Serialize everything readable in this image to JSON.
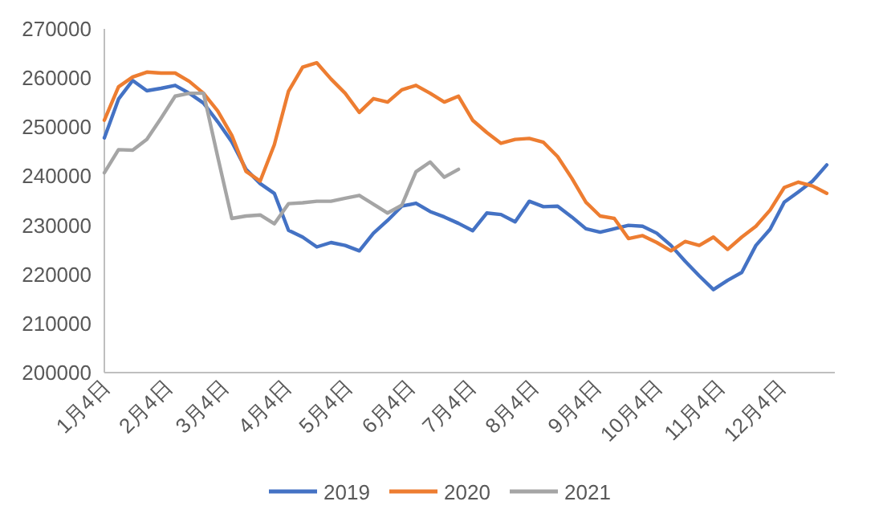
{
  "chart_data": {
    "type": "line",
    "x": [
      "--01-04",
      "--01-11",
      "--01-18",
      "--01-25",
      "--02-01",
      "--02-08",
      "--02-15",
      "--02-22",
      "--03-01",
      "--03-08",
      "--03-15",
      "--03-22",
      "--03-29",
      "--04-05",
      "--04-12",
      "--04-19",
      "--04-26",
      "--05-03",
      "--05-10",
      "--05-17",
      "--05-24",
      "--05-31",
      "--06-07",
      "--06-14",
      "--06-21",
      "--06-28",
      "--07-05",
      "--07-12",
      "--07-19",
      "--07-26",
      "--08-02",
      "--08-09",
      "--08-16",
      "--08-23",
      "--08-30",
      "--09-06",
      "--09-13",
      "--09-20",
      "--09-27",
      "--10-04",
      "--10-11",
      "--10-18",
      "--10-25",
      "--11-01",
      "--11-08",
      "--11-15",
      "--11-22",
      "--11-29",
      "--12-06",
      "--12-13",
      "--12-20",
      "--12-27"
    ],
    "series": [
      {
        "name": "2019",
        "color": "#4472c4",
        "values": [
          247800,
          255700,
          259500,
          257400,
          257900,
          258500,
          256900,
          254900,
          251100,
          247000,
          241400,
          238500,
          236500,
          229000,
          227600,
          225600,
          226500,
          225900,
          224800,
          228400,
          231000,
          233900,
          234500,
          232800,
          231700,
          230400,
          228900,
          232500,
          232200,
          230700,
          234900,
          233800,
          233900,
          231700,
          229300,
          228600,
          229300,
          230000,
          229800,
          228400,
          225900,
          222700,
          219700,
          216900,
          218800,
          220400,
          225900,
          229200,
          234700,
          236800,
          239000,
          242300
        ]
      },
      {
        "name": "2020",
        "color": "#ed7d31",
        "values": [
          251400,
          258200,
          260200,
          261200,
          261000,
          261000,
          259300,
          256900,
          253300,
          248300,
          241000,
          239000,
          246400,
          257300,
          262200,
          263100,
          259800,
          256900,
          253000,
          255800,
          255100,
          257600,
          258500,
          256900,
          255100,
          256300,
          251400,
          248900,
          246700,
          247500,
          247700,
          246900,
          244000,
          239600,
          234700,
          231900,
          231400,
          227300,
          227900,
          226500,
          224800,
          226700,
          225900,
          227600,
          225100,
          227600,
          229800,
          233100,
          237700,
          238800,
          238000,
          236500
        ]
      },
      {
        "name": "2021",
        "color": "#a5a5a5",
        "values": [
          240700,
          245400,
          245300,
          247500,
          251800,
          256300,
          256900,
          256900,
          244000,
          231400,
          231900,
          232100,
          230300,
          234400,
          234600,
          234900,
          234900,
          235500,
          236100,
          234300,
          232500,
          234100,
          240900,
          242900,
          239800,
          241400,
          null,
          null,
          null,
          null,
          null,
          null,
          null,
          null,
          null,
          null,
          null,
          null,
          null,
          null,
          null,
          null,
          null,
          null,
          null,
          null,
          null,
          null,
          null,
          null,
          null,
          null
        ]
      }
    ],
    "xlim": [
      "--01-04",
      "--12-31"
    ],
    "xticks": [
      {
        "value": "--01-04",
        "label": "1月4日"
      },
      {
        "value": "--02-04",
        "label": "2月4日"
      },
      {
        "value": "--03-04",
        "label": "3月4日"
      },
      {
        "value": "--04-04",
        "label": "4月4日"
      },
      {
        "value": "--05-04",
        "label": "5月4日"
      },
      {
        "value": "--06-04",
        "label": "6月4日"
      },
      {
        "value": "--07-04",
        "label": "7月4日"
      },
      {
        "value": "--08-04",
        "label": "8月4日"
      },
      {
        "value": "--09-04",
        "label": "9月4日"
      },
      {
        "value": "--10-04",
        "label": "10月4日"
      },
      {
        "value": "--11-04",
        "label": "11月4日"
      },
      {
        "value": "--12-04",
        "label": "12月4日"
      }
    ],
    "ylim": [
      200000,
      270000
    ],
    "yticks": [
      200000,
      210000,
      220000,
      230000,
      240000,
      250000,
      260000,
      270000
    ],
    "legend": "bottom"
  }
}
